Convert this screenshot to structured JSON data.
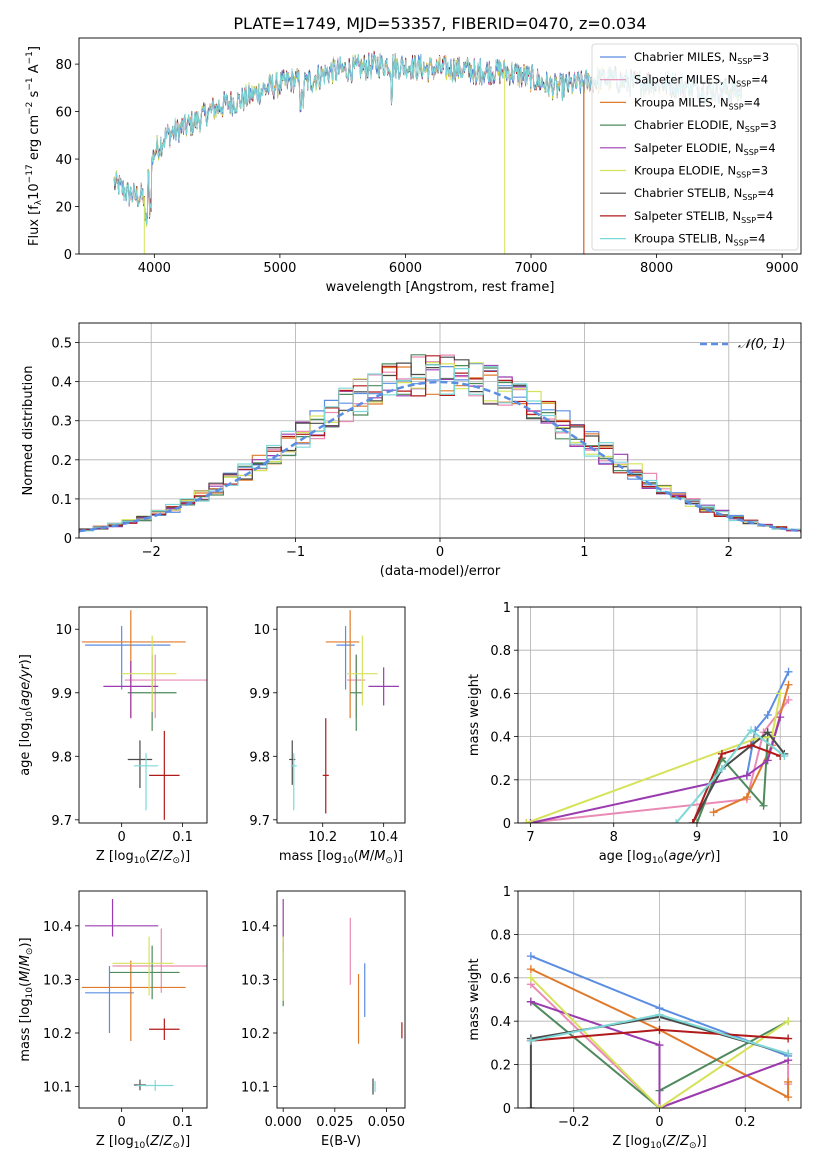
{
  "figure_title": "PLATE=1749, MJD=53357, FIBERID=0470, z=0.034",
  "colors": {
    "Chabrier MILES": "#5b8de2",
    "Salpeter MILES": "#e98bb5",
    "Kroupa MILES": "#e07a2a",
    "Chabrier ELODIE": "#4e8a5c",
    "Salpeter ELODIE": "#9b3bb0",
    "Kroupa ELODIE": "#d6e35a",
    "Chabrier STELIB": "#4a4a4a",
    "Salpeter STELIB": "#b01a1a",
    "Kroupa STELIB": "#7fd8d8"
  },
  "chart_data": [
    {
      "type": "line",
      "panel": "spectrum",
      "xlabel": "wavelength [Angstrom, rest frame]",
      "ylabel": "Flux [f_λ10^-17 erg cm^-2 s^-1 A^-1]",
      "xlim": [
        3400,
        9150
      ],
      "ylim": [
        0,
        91
      ],
      "xticks": [
        4000,
        5000,
        6000,
        7000,
        8000,
        9000
      ],
      "yticks": [
        0,
        20,
        40,
        60,
        80
      ],
      "legend_position": "upper right",
      "series": [
        {
          "name": "Chabrier MILES, N_SSP=3"
        },
        {
          "name": "Salpeter MILES, N_SSP=4"
        },
        {
          "name": "Kroupa MILES, N_SSP=4"
        },
        {
          "name": "Chabrier ELODIE, N_SSP=3"
        },
        {
          "name": "Salpeter ELODIE, N_SSP=4"
        },
        {
          "name": "Kroupa ELODIE, N_SSP=3"
        },
        {
          "name": "Chabrier STELIB, N_SSP=4"
        },
        {
          "name": "Salpeter STELIB, N_SSP=4"
        },
        {
          "name": "Kroupa STELIB, N_SSP=4"
        }
      ],
      "continuum_points": [
        [
          3680,
          30
        ],
        [
          3800,
          25
        ],
        [
          3920,
          24
        ],
        [
          4000,
          43
        ],
        [
          4100,
          50
        ],
        [
          4300,
          55
        ],
        [
          4500,
          62
        ],
        [
          4700,
          65
        ],
        [
          4900,
          70
        ],
        [
          5100,
          73
        ],
        [
          5200,
          72
        ],
        [
          5400,
          77
        ],
        [
          5600,
          78
        ],
        [
          5800,
          80
        ],
        [
          6000,
          79
        ],
        [
          6200,
          78
        ],
        [
          6400,
          78
        ],
        [
          6600,
          77
        ],
        [
          6800,
          77
        ],
        [
          7000,
          74
        ],
        [
          7200,
          70
        ],
        [
          7400,
          72
        ],
        [
          7600,
          74
        ],
        [
          7800,
          72
        ],
        [
          8000,
          72
        ],
        [
          8200,
          71
        ],
        [
          8400,
          69
        ],
        [
          8600,
          69
        ],
        [
          8680,
          68
        ]
      ]
    },
    {
      "type": "line",
      "panel": "residuals",
      "xlabel": "(data-model)/error",
      "ylabel": "Normed distribution",
      "xlim": [
        -2.5,
        2.5
      ],
      "ylim": [
        0,
        0.55
      ],
      "xticks": [
        -2,
        -1,
        0,
        1,
        2
      ],
      "yticks": [
        0.0,
        0.1,
        0.2,
        0.3,
        0.4,
        0.5
      ],
      "grid": true,
      "legend_position": "upper right",
      "reference_curve": {
        "name": "𝒩(0, 1)",
        "type": "gaussian",
        "mean": 0,
        "sigma": 1
      }
    },
    {
      "type": "scatter",
      "panel": "age_vs_Z",
      "xlabel": "Z [log10(Z/Z⊙)]",
      "ylabel": "age  [log10(age/yr)]",
      "xlim": [
        -0.07,
        0.14
      ],
      "ylim": [
        9.695,
        10.035
      ],
      "xticks": [
        0.0,
        0.1
      ],
      "yticks": [
        9.7,
        9.8,
        9.9,
        10.0
      ],
      "points": [
        {
          "model": "Chabrier MILES",
          "x": 0.0,
          "y": 9.975,
          "xerr": [
            0.06,
            0.08
          ],
          "yerr": [
            0.07,
            0.03
          ]
        },
        {
          "model": "Salpeter MILES",
          "x": 0.055,
          "y": 9.92,
          "xerr": [
            0.05,
            0.09
          ],
          "yerr": [
            0.06,
            0.04
          ]
        },
        {
          "model": "Kroupa MILES",
          "x": 0.015,
          "y": 9.98,
          "xerr": [
            0.08,
            0.09
          ],
          "yerr": [
            0.12,
            0.05
          ]
        },
        {
          "model": "Chabrier ELODIE",
          "x": 0.05,
          "y": 9.9,
          "xerr": [
            0.04,
            0.04
          ],
          "yerr": [
            0.06,
            0.06
          ]
        },
        {
          "model": "Salpeter ELODIE",
          "x": 0.015,
          "y": 9.91,
          "xerr": [
            0.045,
            0.045
          ],
          "yerr": [
            0.05,
            0.04
          ]
        },
        {
          "model": "Kroupa ELODIE",
          "x": 0.05,
          "y": 9.93,
          "xerr": [
            0.05,
            0.04
          ],
          "yerr": [
            0.06,
            0.06
          ]
        },
        {
          "model": "Chabrier STELIB",
          "x": 0.03,
          "y": 9.795,
          "xerr": [
            0.02,
            0.02
          ],
          "yerr": [
            0.045,
            0.03
          ]
        },
        {
          "model": "Salpeter STELIB",
          "x": 0.07,
          "y": 9.77,
          "xerr": [
            0.025,
            0.025
          ],
          "yerr": [
            0.07,
            0.07
          ]
        },
        {
          "model": "Kroupa STELIB",
          "x": 0.04,
          "y": 9.785,
          "xerr": [
            0.02,
            0.02
          ],
          "yerr": [
            0.07,
            0.02
          ]
        }
      ]
    },
    {
      "type": "scatter",
      "panel": "age_vs_mass",
      "xlabel": "mass [log10(M/M⊙)]",
      "ylabel": "",
      "xlim": [
        10.05,
        10.47
      ],
      "ylim": [
        9.695,
        10.035
      ],
      "xticks": [
        10.2,
        10.4
      ],
      "yticks": [
        9.7,
        9.8,
        9.9,
        10.0
      ],
      "points": [
        {
          "model": "Chabrier MILES",
          "x": 10.275,
          "y": 9.975,
          "xerr": [
            0.03,
            0.03
          ],
          "yerr": [
            0.07,
            0.03
          ]
        },
        {
          "model": "Salpeter MILES",
          "x": 10.31,
          "y": 9.92,
          "xerr": [
            0.03,
            0.03
          ],
          "yerr": [
            0.06,
            0.04
          ]
        },
        {
          "model": "Kroupa MILES",
          "x": 10.29,
          "y": 9.98,
          "xerr": [
            0.08,
            0.03
          ],
          "yerr": [
            0.12,
            0.05
          ]
        },
        {
          "model": "Chabrier ELODIE",
          "x": 10.31,
          "y": 9.9,
          "xerr": [
            0.02,
            0.02
          ],
          "yerr": [
            0.06,
            0.06
          ]
        },
        {
          "model": "Salpeter ELODIE",
          "x": 10.4,
          "y": 9.91,
          "xerr": [
            0.05,
            0.05
          ],
          "yerr": [
            0.03,
            0.03
          ]
        },
        {
          "model": "Kroupa ELODIE",
          "x": 10.33,
          "y": 9.93,
          "xerr": [
            0.05,
            0.05
          ],
          "yerr": [
            0.05,
            0.06
          ]
        },
        {
          "model": "Chabrier STELIB",
          "x": 10.1,
          "y": 9.795,
          "xerr": [
            0.01,
            0.01
          ],
          "yerr": [
            0.04,
            0.03
          ]
        },
        {
          "model": "Salpeter STELIB",
          "x": 10.21,
          "y": 9.77,
          "xerr": [
            0.01,
            0.01
          ],
          "yerr": [
            0.06,
            0.09
          ]
        },
        {
          "model": "Kroupa STELIB",
          "x": 10.105,
          "y": 9.785,
          "xerr": [
            0.01,
            0.01
          ],
          "yerr": [
            0.07,
            0.02
          ]
        }
      ]
    },
    {
      "type": "line",
      "panel": "mass_weight_vs_age",
      "xlabel": "age  [log10(age/yr)]",
      "ylabel": "mass weight",
      "xlim": [
        6.85,
        10.25
      ],
      "ylim": [
        0,
        1.0
      ],
      "xticks": [
        7,
        8,
        9,
        10
      ],
      "yticks": [
        0.0,
        0.2,
        0.4,
        0.6,
        0.8,
        1.0
      ],
      "grid": true,
      "series": [
        {
          "model": "Chabrier MILES",
          "x": [
            9.6,
            9.7,
            9.85,
            10.1
          ],
          "y": [
            0.22,
            0.43,
            0.5,
            0.7
          ]
        },
        {
          "model": "Salpeter MILES",
          "x": [
            6.95,
            9.6,
            9.8,
            10.1
          ],
          "y": [
            0.0,
            0.11,
            0.42,
            0.57
          ]
        },
        {
          "model": "Kroupa MILES",
          "x": [
            9.2,
            9.6,
            9.9,
            10.1
          ],
          "y": [
            0.05,
            0.12,
            0.36,
            0.64
          ]
        },
        {
          "model": "Chabrier ELODIE",
          "x": [
            9.0,
            9.3,
            9.8,
            9.85
          ],
          "y": [
            0.0,
            0.3,
            0.08,
            0.4
          ]
        },
        {
          "model": "Salpeter ELODIE",
          "x": [
            7.0,
            9.6,
            9.85,
            10.0
          ],
          "y": [
            0.0,
            0.22,
            0.29,
            0.49
          ]
        },
        {
          "model": "Kroupa ELODIE",
          "x": [
            6.95,
            9.7,
            9.9,
            10.0
          ],
          "y": [
            0.0,
            0.39,
            0.4,
            0.6
          ]
        },
        {
          "model": "Chabrier STELIB",
          "x": [
            8.95,
            9.3,
            9.85,
            10.05
          ],
          "y": [
            0.0,
            0.25,
            0.42,
            0.32
          ]
        },
        {
          "model": "Salpeter STELIB",
          "x": [
            8.95,
            9.3,
            9.65,
            10.0
          ],
          "y": [
            0.0,
            0.32,
            0.36,
            0.31
          ]
        },
        {
          "model": "Kroupa STELIB",
          "x": [
            8.75,
            9.3,
            9.65,
            10.05
          ],
          "y": [
            0.0,
            0.25,
            0.43,
            0.31
          ]
        }
      ]
    },
    {
      "type": "scatter",
      "panel": "mass_vs_Z",
      "xlabel": "Z [log10(Z/Z⊙)]",
      "ylabel": "mass [log10(M/M⊙)]",
      "xlim": [
        -0.07,
        0.14
      ],
      "ylim": [
        10.06,
        10.465
      ],
      "xticks": [
        0.0,
        0.1
      ],
      "yticks": [
        10.1,
        10.2,
        10.3,
        10.4
      ],
      "points": [
        {
          "model": "Chabrier MILES",
          "x": -0.02,
          "y": 10.275,
          "xerr": [
            0.04,
            0.04
          ],
          "yerr": [
            0.075,
            0.05
          ]
        },
        {
          "model": "Salpeter MILES",
          "x": 0.065,
          "y": 10.325,
          "xerr": [
            0.08,
            0.08
          ],
          "yerr": [
            0.05,
            0.07
          ]
        },
        {
          "model": "Kroupa MILES",
          "x": 0.015,
          "y": 10.285,
          "xerr": [
            0.08,
            0.09
          ],
          "yerr": [
            0.1,
            0.05
          ]
        },
        {
          "model": "Chabrier ELODIE",
          "x": 0.05,
          "y": 10.313,
          "xerr": [
            0.07,
            0.045
          ],
          "yerr": [
            0.05,
            0.05
          ]
        },
        {
          "model": "Salpeter ELODIE",
          "x": -0.015,
          "y": 10.4,
          "xerr": [
            0.045,
            0.075
          ],
          "yerr": [
            0.02,
            0.05
          ]
        },
        {
          "model": "Kroupa ELODIE",
          "x": 0.045,
          "y": 10.33,
          "xerr": [
            0.06,
            0.04
          ],
          "yerr": [
            0.06,
            0.05
          ]
        },
        {
          "model": "Chabrier STELIB",
          "x": 0.03,
          "y": 10.103,
          "xerr": [
            0.01,
            0.01
          ],
          "yerr": [
            0.01,
            0.01
          ]
        },
        {
          "model": "Salpeter STELIB",
          "x": 0.07,
          "y": 10.207,
          "xerr": [
            0.025,
            0.025
          ],
          "yerr": [
            0.02,
            0.02
          ]
        },
        {
          "model": "Kroupa STELIB",
          "x": 0.055,
          "y": 10.102,
          "xerr": [
            0.03,
            0.03
          ],
          "yerr": [
            0.01,
            0.01
          ]
        }
      ]
    },
    {
      "type": "scatter",
      "panel": "mass_vs_EBV",
      "xlabel": "E(B-V)",
      "ylabel": "",
      "xlim": [
        -0.003,
        0.059
      ],
      "ylim": [
        10.06,
        10.465
      ],
      "xticks": [
        0.0,
        0.025,
        0.05
      ],
      "xtick_labels": [
        "0.000",
        "0.025",
        "0.050"
      ],
      "yticks": [
        10.1,
        10.2,
        10.3,
        10.4
      ],
      "points": [
        {
          "model": "Chabrier MILES",
          "x": 0.0395,
          "y": 10.28,
          "yerr": [
            0.05,
            0.05
          ]
        },
        {
          "model": "Salpeter MILES",
          "x": 0.0325,
          "y": 10.35,
          "yerr": [
            0.06,
            0.065
          ]
        },
        {
          "model": "Kroupa MILES",
          "x": 0.0365,
          "y": 10.25,
          "yerr": [
            0.07,
            0.06
          ]
        },
        {
          "model": "Chabrier ELODIE",
          "x": 0.0,
          "y": 10.31,
          "yerr": [
            0.06,
            0.06
          ]
        },
        {
          "model": "Salpeter ELODIE",
          "x": 0.0,
          "y": 10.4,
          "yerr": [
            0.05,
            0.05
          ]
        },
        {
          "model": "Kroupa ELODIE",
          "x": 0.0,
          "y": 10.32,
          "yerr": [
            0.06,
            0.06
          ]
        },
        {
          "model": "Chabrier STELIB",
          "x": 0.0435,
          "y": 10.105,
          "yerr": [
            0.02,
            0.01
          ]
        },
        {
          "model": "Salpeter STELIB",
          "x": 0.0575,
          "y": 10.205,
          "yerr": [
            0.015,
            0.015
          ]
        },
        {
          "model": "Kroupa STELIB",
          "x": 0.0445,
          "y": 10.1,
          "yerr": [
            0.01,
            0.01
          ]
        }
      ]
    },
    {
      "type": "line",
      "panel": "mass_weight_vs_Z",
      "xlabel": "Z [log10(Z/Z⊙)]",
      "ylabel": "mass weight",
      "xlim": [
        -0.33,
        0.33
      ],
      "ylim": [
        0,
        1.0
      ],
      "xticks": [
        -0.2,
        0.0,
        0.2
      ],
      "yticks": [
        0.0,
        0.2,
        0.4,
        0.6,
        0.8,
        1.0
      ],
      "grid": true,
      "series": [
        {
          "model": "Chabrier MILES",
          "x": [
            -0.3,
            0.0,
            0.3
          ],
          "y": [
            0.7,
            0.46,
            0.24
          ]
        },
        {
          "model": "Salpeter MILES",
          "x": [
            -0.3,
            0.0,
            0.3,
            0.3
          ],
          "y": [
            0.57,
            0.0,
            0.22,
            0.11
          ]
        },
        {
          "model": "Kroupa MILES",
          "x": [
            -0.3,
            0.0,
            0.3,
            0.3
          ],
          "y": [
            0.64,
            0.36,
            0.05,
            0.12
          ]
        },
        {
          "model": "Chabrier ELODIE",
          "x": [
            -0.3,
            0.0,
            0.0,
            0.3
          ],
          "y": [
            0.49,
            0.0,
            0.08,
            0.4
          ]
        },
        {
          "model": "Salpeter ELODIE",
          "x": [
            -0.3,
            0.0,
            0.0,
            0.3
          ],
          "y": [
            0.49,
            0.29,
            0.0,
            0.22
          ]
        },
        {
          "model": "Kroupa ELODIE",
          "x": [
            -0.3,
            0.0,
            0.3
          ],
          "y": [
            0.6,
            0.0,
            0.4
          ]
        },
        {
          "model": "Chabrier STELIB",
          "x": [
            -0.3,
            -0.3,
            0.0,
            0.3
          ],
          "y": [
            0.0,
            0.32,
            0.42,
            0.25
          ]
        },
        {
          "model": "Salpeter STELIB",
          "x": [
            -0.3,
            0.0,
            0.3
          ],
          "y": [
            0.31,
            0.36,
            0.32
          ]
        },
        {
          "model": "Kroupa STELIB",
          "x": [
            -0.3,
            0.0,
            0.3
          ],
          "y": [
            0.31,
            0.43,
            0.25
          ]
        }
      ]
    }
  ]
}
